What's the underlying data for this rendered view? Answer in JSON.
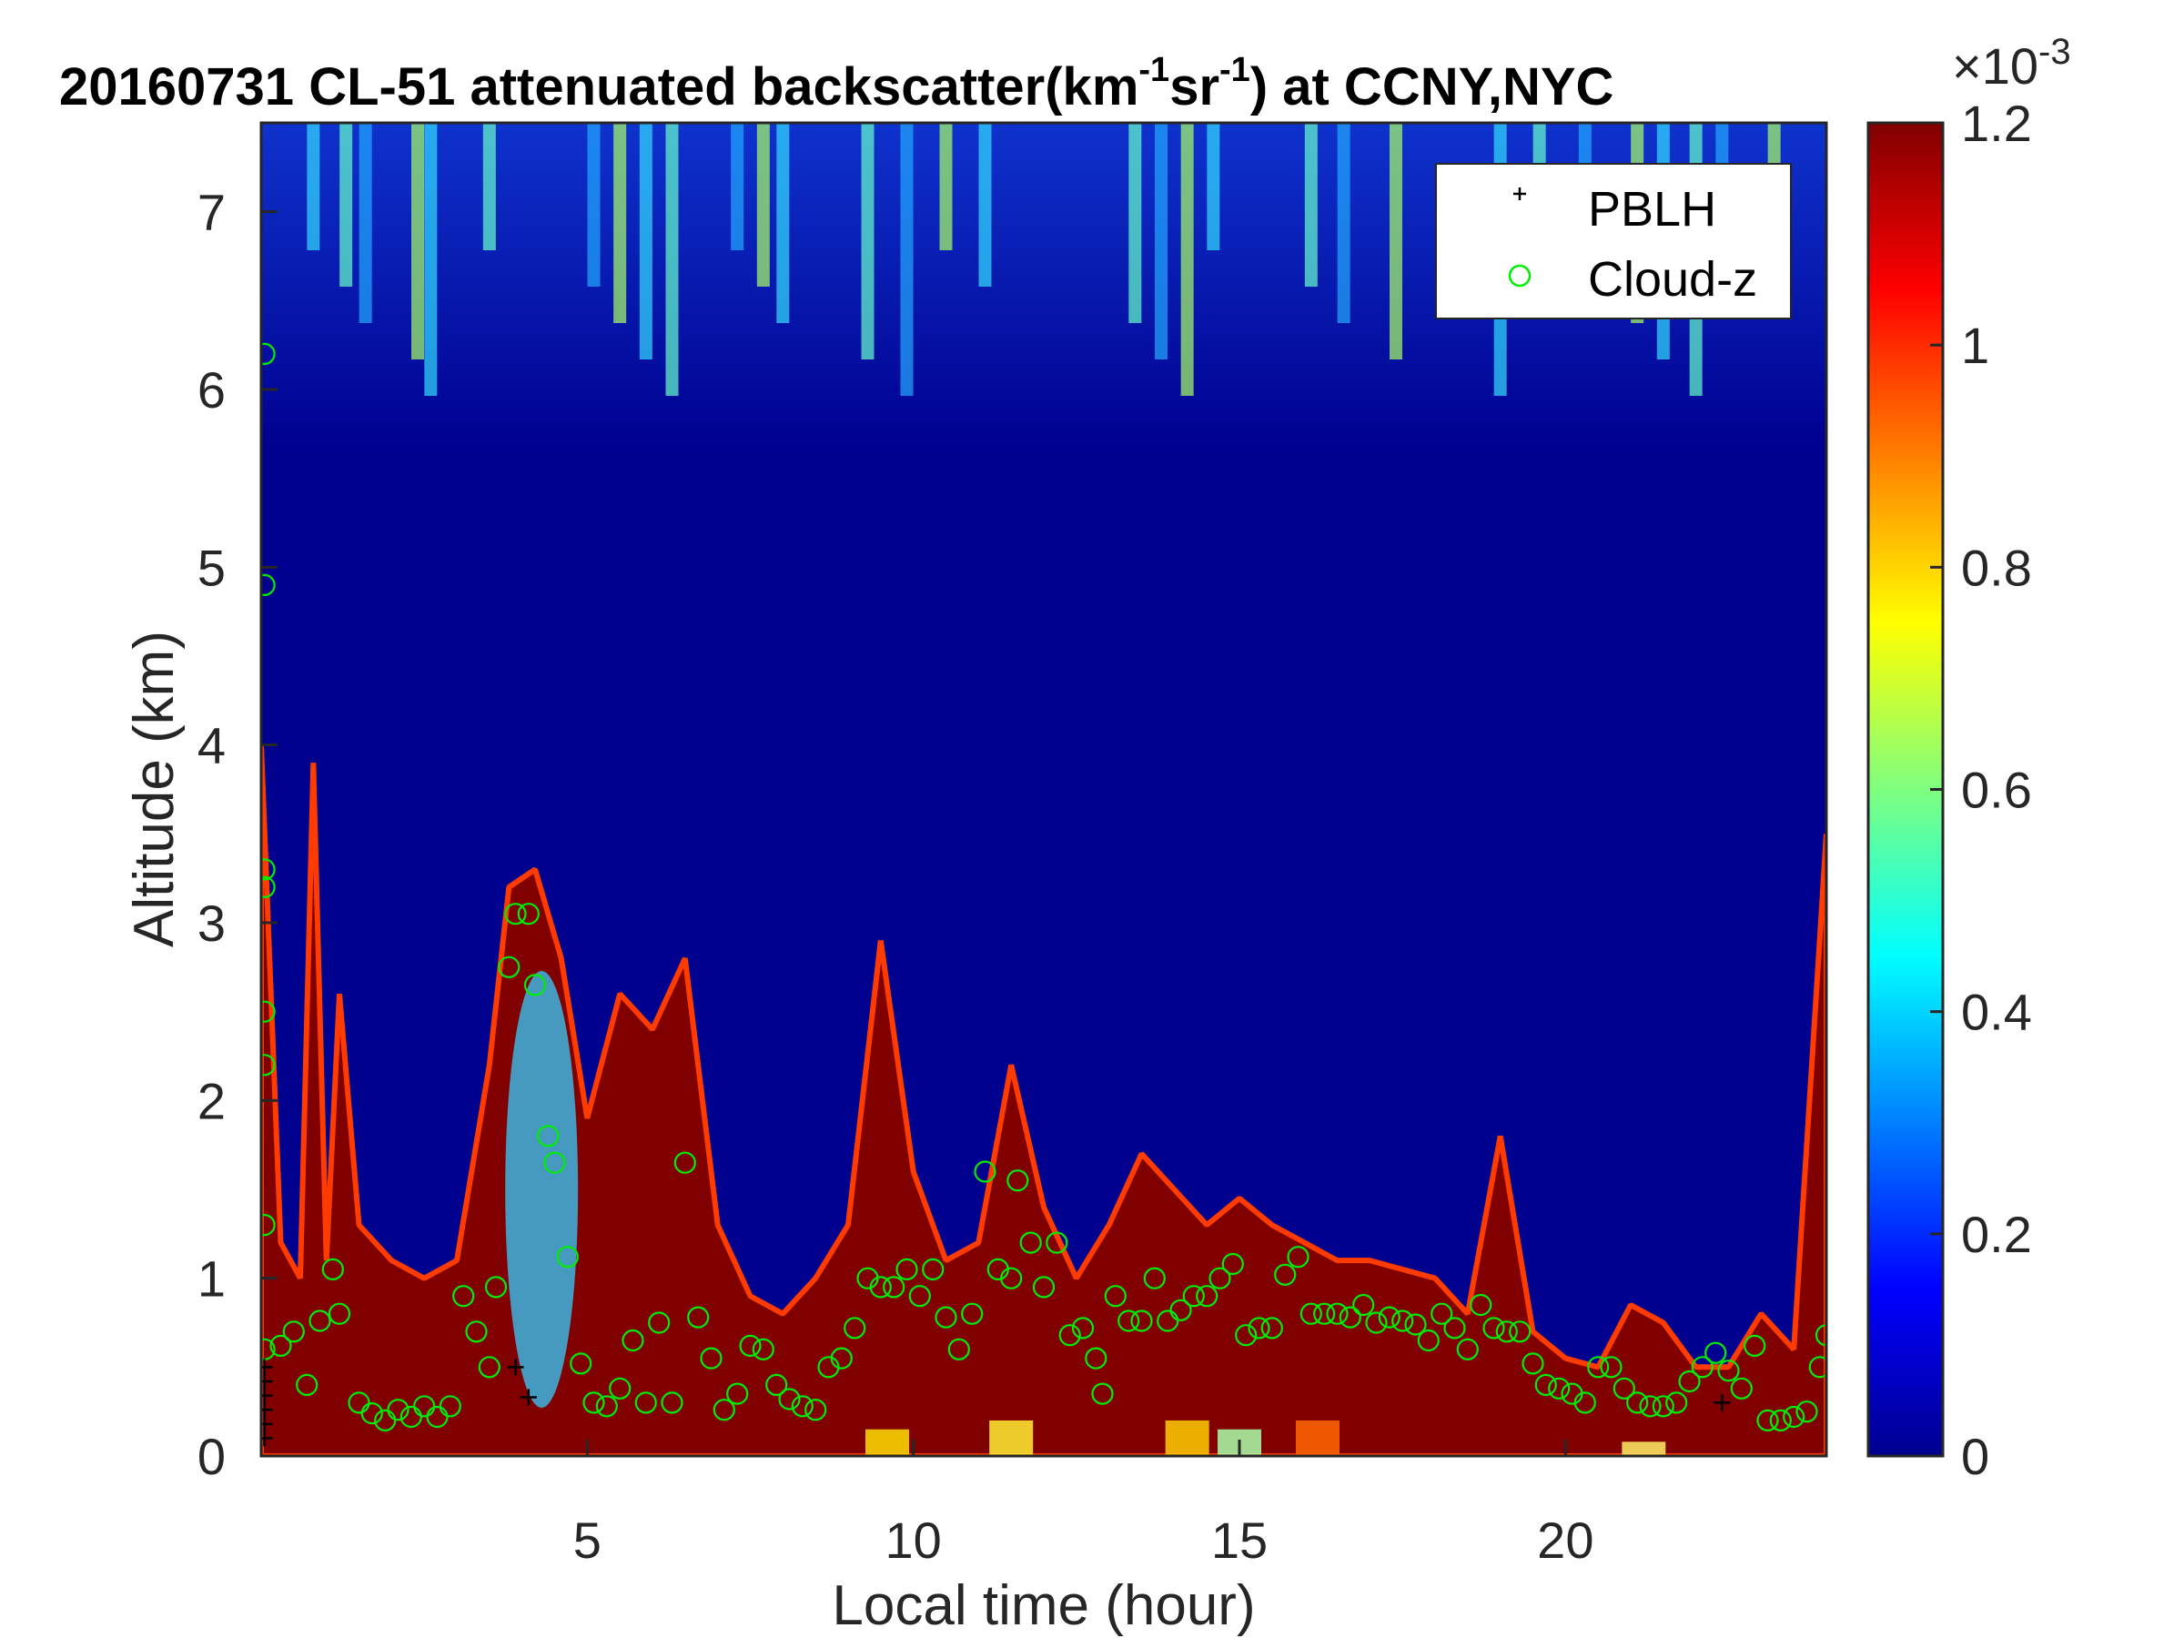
{
  "chart_data": {
    "type": "heatmap",
    "title": {
      "date": "20160731",
      "prefix": "CL-51 attenuated backscatter(km",
      "sup1": "-1",
      "mid": "sr",
      "sup2": "-1",
      "suffix": ") at CCNY,NYC"
    },
    "xlabel": "Local time (hour)",
    "ylabel": "Altitude (km)",
    "xlim": [
      0,
      24
    ],
    "ylim": [
      0,
      7.5
    ],
    "x_ticks": [
      5,
      10,
      15,
      20
    ],
    "y_ticks": [
      0,
      1,
      2,
      3,
      4,
      5,
      6,
      7
    ],
    "colorbar": {
      "range": [
        0,
        1.2
      ],
      "ticks": [
        "0",
        "0.2",
        "0.4",
        "0.6",
        "0.8",
        "1",
        "1.2"
      ],
      "exponent_base": "×10",
      "exponent": "-3",
      "colormap": "jet"
    },
    "legend": {
      "placement": "top-right",
      "entries": [
        {
          "label": "PBLH",
          "marker": "plus",
          "color": "#000000"
        },
        {
          "label": "Cloud-z",
          "marker": "circle",
          "color": "#00ee00"
        }
      ]
    },
    "aerosol_layer_top_km": [
      [
        0.0,
        4.0
      ],
      [
        0.3,
        1.2
      ],
      [
        0.6,
        1.0
      ],
      [
        0.8,
        3.9
      ],
      [
        1.0,
        1.1
      ],
      [
        1.2,
        2.6
      ],
      [
        1.5,
        1.3
      ],
      [
        2.0,
        1.1
      ],
      [
        2.5,
        1.0
      ],
      [
        3.0,
        1.1
      ],
      [
        3.5,
        2.2
      ],
      [
        3.8,
        3.2
      ],
      [
        4.2,
        3.3
      ],
      [
        4.6,
        2.8
      ],
      [
        5.0,
        1.9
      ],
      [
        5.5,
        2.6
      ],
      [
        6.0,
        2.4
      ],
      [
        6.5,
        2.8
      ],
      [
        7.0,
        1.3
      ],
      [
        7.5,
        0.9
      ],
      [
        8.0,
        0.8
      ],
      [
        8.5,
        1.0
      ],
      [
        9.0,
        1.3
      ],
      [
        9.5,
        2.9
      ],
      [
        10.0,
        1.6
      ],
      [
        10.5,
        1.1
      ],
      [
        11.0,
        1.2
      ],
      [
        11.5,
        2.2
      ],
      [
        12.0,
        1.4
      ],
      [
        12.5,
        1.0
      ],
      [
        13.0,
        1.3
      ],
      [
        13.5,
        1.7
      ],
      [
        14.0,
        1.5
      ],
      [
        14.5,
        1.3
      ],
      [
        15.0,
        1.45
      ],
      [
        15.5,
        1.3
      ],
      [
        16.0,
        1.2
      ],
      [
        16.5,
        1.1
      ],
      [
        17.0,
        1.1
      ],
      [
        17.5,
        1.05
      ],
      [
        18.0,
        1.0
      ],
      [
        18.5,
        0.8
      ],
      [
        19.0,
        1.8
      ],
      [
        19.5,
        0.7
      ],
      [
        20.0,
        0.55
      ],
      [
        20.5,
        0.5
      ],
      [
        21.0,
        0.85
      ],
      [
        21.5,
        0.75
      ],
      [
        22.0,
        0.5
      ],
      [
        22.5,
        0.5
      ],
      [
        23.0,
        0.8
      ],
      [
        23.5,
        0.6
      ],
      [
        24.0,
        3.5
      ]
    ],
    "pblh": {
      "name": "PBLH",
      "points": [
        [
          0.05,
          0.1
        ],
        [
          0.05,
          0.18
        ],
        [
          0.05,
          0.26
        ],
        [
          0.05,
          0.34
        ],
        [
          0.05,
          0.42
        ],
        [
          0.05,
          0.5
        ],
        [
          3.9,
          0.5
        ],
        [
          4.1,
          0.33
        ],
        [
          22.4,
          0.3
        ]
      ]
    },
    "cloud_z": {
      "name": "Cloud-z",
      "points": [
        [
          0.05,
          6.2
        ],
        [
          0.05,
          4.9
        ],
        [
          0.05,
          3.3
        ],
        [
          0.05,
          3.2
        ],
        [
          0.05,
          2.5
        ],
        [
          0.05,
          2.2
        ],
        [
          0.05,
          1.3
        ],
        [
          0.05,
          0.6
        ],
        [
          0.3,
          0.62
        ],
        [
          0.5,
          0.7
        ],
        [
          0.7,
          0.4
        ],
        [
          0.9,
          0.76
        ],
        [
          1.1,
          1.05
        ],
        [
          1.2,
          0.8
        ],
        [
          1.5,
          0.3
        ],
        [
          1.7,
          0.24
        ],
        [
          1.9,
          0.2
        ],
        [
          2.1,
          0.26
        ],
        [
          2.3,
          0.22
        ],
        [
          2.5,
          0.28
        ],
        [
          2.7,
          0.22
        ],
        [
          2.9,
          0.28
        ],
        [
          3.1,
          0.9
        ],
        [
          3.3,
          0.7
        ],
        [
          3.5,
          0.5
        ],
        [
          3.6,
          0.95
        ],
        [
          3.8,
          2.75
        ],
        [
          3.9,
          3.05
        ],
        [
          4.1,
          3.05
        ],
        [
          4.2,
          2.65
        ],
        [
          4.4,
          1.8
        ],
        [
          4.5,
          1.65
        ],
        [
          4.7,
          1.12
        ],
        [
          4.9,
          0.52
        ],
        [
          5.1,
          0.3
        ],
        [
          5.3,
          0.28
        ],
        [
          5.5,
          0.38
        ],
        [
          5.7,
          0.65
        ],
        [
          5.9,
          0.3
        ],
        [
          6.1,
          0.75
        ],
        [
          6.3,
          0.3
        ],
        [
          6.5,
          1.65
        ],
        [
          6.7,
          0.78
        ],
        [
          6.9,
          0.55
        ],
        [
          7.1,
          0.26
        ],
        [
          7.3,
          0.35
        ],
        [
          7.5,
          0.62
        ],
        [
          7.7,
          0.6
        ],
        [
          7.9,
          0.4
        ],
        [
          8.1,
          0.32
        ],
        [
          8.3,
          0.28
        ],
        [
          8.5,
          0.26
        ],
        [
          8.7,
          0.5
        ],
        [
          8.9,
          0.55
        ],
        [
          9.1,
          0.72
        ],
        [
          9.3,
          1.0
        ],
        [
          9.5,
          0.95
        ],
        [
          9.7,
          0.95
        ],
        [
          9.9,
          1.05
        ],
        [
          10.1,
          0.9
        ],
        [
          10.3,
          1.05
        ],
        [
          10.5,
          0.78
        ],
        [
          10.7,
          0.6
        ],
        [
          10.9,
          0.8
        ],
        [
          11.1,
          1.6
        ],
        [
          11.3,
          1.05
        ],
        [
          11.5,
          1.0
        ],
        [
          11.6,
          1.55
        ],
        [
          11.8,
          1.2
        ],
        [
          12.0,
          0.95
        ],
        [
          12.2,
          1.2
        ],
        [
          12.4,
          0.68
        ],
        [
          12.6,
          0.72
        ],
        [
          12.8,
          0.55
        ],
        [
          12.9,
          0.35
        ],
        [
          13.1,
          0.9
        ],
        [
          13.3,
          0.76
        ],
        [
          13.5,
          0.76
        ],
        [
          13.7,
          1.0
        ],
        [
          13.9,
          0.76
        ],
        [
          14.1,
          0.82
        ],
        [
          14.3,
          0.9
        ],
        [
          14.5,
          0.9
        ],
        [
          14.7,
          1.0
        ],
        [
          14.9,
          1.08
        ],
        [
          15.1,
          0.68
        ],
        [
          15.3,
          0.72
        ],
        [
          15.5,
          0.72
        ],
        [
          15.7,
          1.02
        ],
        [
          15.9,
          1.12
        ],
        [
          16.1,
          0.8
        ],
        [
          16.3,
          0.8
        ],
        [
          16.5,
          0.8
        ],
        [
          16.7,
          0.78
        ],
        [
          16.9,
          0.85
        ],
        [
          17.1,
          0.75
        ],
        [
          17.3,
          0.78
        ],
        [
          17.5,
          0.76
        ],
        [
          17.7,
          0.74
        ],
        [
          17.9,
          0.65
        ],
        [
          18.1,
          0.8
        ],
        [
          18.3,
          0.72
        ],
        [
          18.5,
          0.6
        ],
        [
          18.7,
          0.85
        ],
        [
          18.9,
          0.72
        ],
        [
          19.1,
          0.7
        ],
        [
          19.3,
          0.7
        ],
        [
          19.5,
          0.52
        ],
        [
          19.7,
          0.4
        ],
        [
          19.9,
          0.38
        ],
        [
          20.1,
          0.35
        ],
        [
          20.3,
          0.3
        ],
        [
          20.5,
          0.5
        ],
        [
          20.7,
          0.5
        ],
        [
          20.9,
          0.38
        ],
        [
          21.1,
          0.3
        ],
        [
          21.3,
          0.28
        ],
        [
          21.5,
          0.28
        ],
        [
          21.7,
          0.3
        ],
        [
          21.9,
          0.42
        ],
        [
          22.1,
          0.5
        ],
        [
          22.3,
          0.58
        ],
        [
          22.5,
          0.48
        ],
        [
          22.7,
          0.38
        ],
        [
          22.9,
          0.62
        ],
        [
          23.1,
          0.2
        ],
        [
          23.3,
          0.2
        ],
        [
          23.5,
          0.22
        ],
        [
          23.7,
          0.25
        ],
        [
          23.9,
          0.5
        ],
        [
          24.0,
          0.68
        ]
      ]
    }
  }
}
